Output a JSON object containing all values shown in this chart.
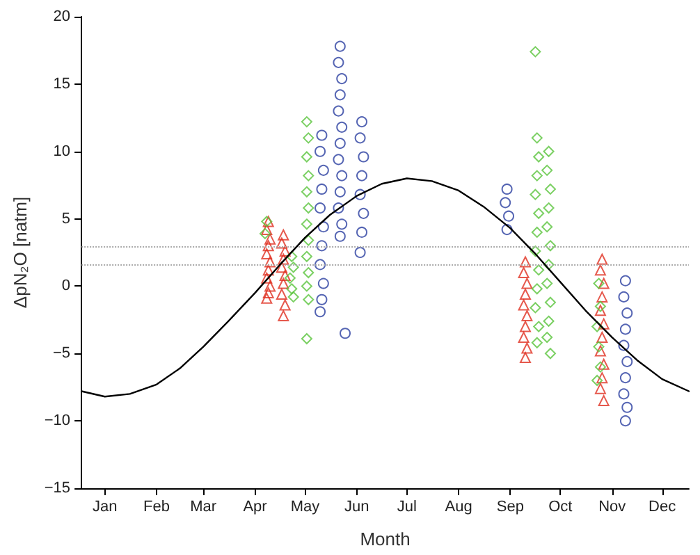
{
  "chart_data": {
    "type": "scatter",
    "xlabel": "Month",
    "ylabel": "ΔpN₂O [natm]",
    "xlim": [
      "--01-01",
      "--12-31"
    ],
    "xticks": [
      {
        "value": "--01-15",
        "label": "Jan"
      },
      {
        "value": "--02-15",
        "label": "Feb"
      },
      {
        "value": "--03-15",
        "label": "Mar"
      },
      {
        "value": "--04-15",
        "label": "Apr"
      },
      {
        "value": "--05-15",
        "label": "May"
      },
      {
        "value": "--06-15",
        "label": "Jun"
      },
      {
        "value": "--07-15",
        "label": "Jul"
      },
      {
        "value": "--08-15",
        "label": "Aug"
      },
      {
        "value": "--09-15",
        "label": "Sep"
      },
      {
        "value": "--10-15",
        "label": "Oct"
      },
      {
        "value": "--11-15",
        "label": "Nov"
      },
      {
        "value": "--12-15",
        "label": "Dec"
      }
    ],
    "ylim": [
      -15,
      20
    ],
    "yticks": [
      {
        "value": -15,
        "label": "−15"
      },
      {
        "value": -10,
        "label": "−10"
      },
      {
        "value": -5,
        "label": "−5"
      },
      0,
      5,
      10,
      15,
      20
    ],
    "grid": false,
    "ref_lines": [
      {
        "axis": "y",
        "value": 2.9,
        "color": "#aaaaaa",
        "line_style": "dotted"
      },
      {
        "axis": "y",
        "value": 1.6,
        "color": "#aaaaaa",
        "line_style": "dotted"
      }
    ],
    "series": [
      {
        "type": "line",
        "color": "#000000",
        "marker": "none",
        "line_style": "solid",
        "x": [
          "--01-01",
          "--01-15",
          "--01-30",
          "--02-15",
          "--03-01",
          "--03-15",
          "--03-30",
          "--04-15",
          "--04-30",
          "--05-15",
          "--05-30",
          "--06-15",
          "--06-30",
          "--07-15",
          "--07-30",
          "--08-15",
          "--08-30",
          "--09-15",
          "--09-30",
          "--10-15",
          "--10-30",
          "--11-15",
          "--11-30",
          "--12-15",
          "--12-31"
        ],
        "values": [
          -7.8,
          -8.2,
          -8.0,
          -7.3,
          -6.1,
          -4.5,
          -2.6,
          -0.5,
          1.6,
          3.6,
          5.3,
          6.7,
          7.6,
          8.0,
          7.8,
          7.1,
          5.9,
          4.3,
          2.4,
          0.3,
          -1.8,
          -3.8,
          -5.5,
          -6.9,
          -7.8
        ]
      },
      {
        "color": "#e03020",
        "marker": "triangle",
        "x": [
          "--04-23",
          "--04-22",
          "--04-24",
          "--04-23",
          "--04-22",
          "--04-24",
          "--04-23",
          "--04-22",
          "--04-24",
          "--04-23",
          "--04-22",
          "--05-02",
          "--05-01",
          "--05-03",
          "--05-02",
          "--05-01",
          "--05-03",
          "--05-02",
          "--05-01",
          "--05-03",
          "--05-02",
          "--09-24",
          "--09-23",
          "--09-25",
          "--09-24",
          "--09-23",
          "--09-25",
          "--09-24",
          "--09-23",
          "--09-25",
          "--09-24",
          "--11-09",
          "--11-08",
          "--11-10",
          "--11-09",
          "--11-08",
          "--11-10",
          "--11-09",
          "--11-08",
          "--11-10",
          "--11-09",
          "--11-08",
          "--11-10"
        ],
        "values": [
          4.8,
          4.2,
          3.5,
          3.0,
          2.4,
          1.8,
          1.2,
          0.6,
          0.0,
          -0.5,
          -0.9,
          3.8,
          3.2,
          2.6,
          2.0,
          1.4,
          0.8,
          0.2,
          -0.6,
          -1.4,
          -2.2,
          1.8,
          1.0,
          0.2,
          -0.6,
          -1.4,
          -2.2,
          -3.0,
          -3.8,
          -4.6,
          -5.3,
          2.0,
          1.2,
          0.2,
          -0.8,
          -1.8,
          -2.8,
          -3.8,
          -4.8,
          -5.8,
          -6.8,
          -7.6,
          -8.5
        ]
      },
      {
        "color": "#5ac43c",
        "marker": "diamond",
        "x": [
          "--04-22",
          "--04-21",
          "--05-07",
          "--05-08",
          "--05-06",
          "--05-07",
          "--05-08",
          "--05-16",
          "--05-17",
          "--05-16",
          "--05-17",
          "--05-16",
          "--05-17",
          "--05-16",
          "--05-17",
          "--05-16",
          "--05-17",
          "--05-16",
          "--05-17",
          "--05-16",
          "--09-30",
          "--10-01",
          "--10-02",
          "--10-01",
          "--09-30",
          "--10-02",
          "--10-01",
          "--09-30",
          "--10-02",
          "--10-01",
          "--09-30",
          "--10-02",
          "--10-01",
          "--10-08",
          "--10-07",
          "--10-09",
          "--10-08",
          "--10-07",
          "--10-09",
          "--10-08",
          "--10-07",
          "--10-09",
          "--10-08",
          "--10-07",
          "--10-09",
          "--11-07",
          "--11-08",
          "--11-06",
          "--11-07",
          "--11-08",
          "--11-06"
        ],
        "values": [
          4.8,
          3.9,
          2.2,
          1.4,
          0.6,
          -0.2,
          -0.8,
          12.2,
          11.0,
          9.6,
          8.2,
          7.0,
          5.8,
          4.6,
          3.4,
          2.2,
          1.0,
          0.0,
          -1.0,
          -3.9,
          17.4,
          11.0,
          9.6,
          8.2,
          6.8,
          5.4,
          4.0,
          2.6,
          1.2,
          -0.2,
          -1.6,
          -3.0,
          -4.2,
          10.0,
          8.6,
          7.2,
          5.8,
          4.4,
          3.0,
          1.6,
          0.2,
          -1.2,
          -2.6,
          -3.8,
          -5.0,
          0.2,
          -1.5,
          -3.0,
          -4.5,
          -6.0,
          -7.0
        ]
      },
      {
        "color": "#2b3fa0",
        "marker": "circle",
        "x": [
          "--05-25",
          "--05-24",
          "--05-26",
          "--05-25",
          "--05-24",
          "--05-26",
          "--05-25",
          "--05-24",
          "--05-26",
          "--05-25",
          "--05-24",
          "--06-05",
          "--06-04",
          "--06-06",
          "--06-05",
          "--06-04",
          "--06-06",
          "--06-05",
          "--06-04",
          "--06-06",
          "--06-05",
          "--06-04",
          "--06-06",
          "--06-05",
          "--06-08",
          "--06-18",
          "--06-17",
          "--06-19",
          "--06-18",
          "--06-17",
          "--06-19",
          "--06-18",
          "--06-17",
          "--09-13",
          "--09-12",
          "--09-14",
          "--09-13",
          "--11-23",
          "--11-22",
          "--11-24",
          "--11-23",
          "--11-22",
          "--11-24",
          "--11-23",
          "--11-22",
          "--11-24",
          "--11-23"
        ],
        "values": [
          11.2,
          10.0,
          8.6,
          7.2,
          5.8,
          4.4,
          3.0,
          1.6,
          0.2,
          -1.0,
          -1.9,
          17.8,
          16.6,
          15.4,
          14.2,
          13.0,
          11.8,
          10.6,
          9.4,
          8.2,
          7.0,
          5.8,
          4.6,
          3.7,
          -3.5,
          12.2,
          11.0,
          9.6,
          8.2,
          6.8,
          5.4,
          4.0,
          2.5,
          7.2,
          6.2,
          5.2,
          4.2,
          0.4,
          -0.8,
          -2.0,
          -3.2,
          -4.4,
          -5.6,
          -6.8,
          -8.0,
          -9.0,
          -10.0
        ]
      }
    ]
  }
}
